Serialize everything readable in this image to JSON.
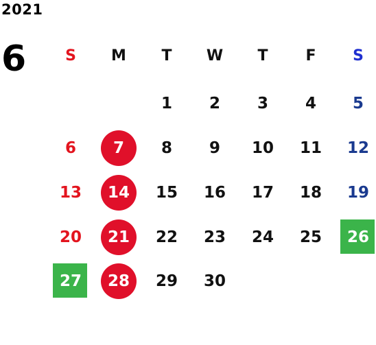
{
  "calendar": {
    "year": "2021",
    "month": "6",
    "weekdays": [
      "S",
      "M",
      "T",
      "W",
      "T",
      "F",
      "S"
    ],
    "weeks": [
      [
        "",
        "",
        "1",
        "2",
        "3",
        "4",
        "5"
      ],
      [
        "6",
        "7",
        "8",
        "9",
        "10",
        "11",
        "12"
      ],
      [
        "13",
        "14",
        "15",
        "16",
        "17",
        "18",
        "19"
      ],
      [
        "20",
        "21",
        "22",
        "23",
        "24",
        "25",
        "26"
      ],
      [
        "27",
        "28",
        "29",
        "30",
        "",
        "",
        ""
      ]
    ],
    "highlights": {
      "red_circle_days": [
        "7",
        "14",
        "21",
        "28"
      ],
      "green_box_days": [
        "26",
        "27"
      ]
    },
    "colors": {
      "sunday_text": "#e3141e",
      "saturday_text": "#1a3a8f",
      "saturday_header": "#1f2fd0",
      "red_circle": "#e0102a",
      "green_box": "#3bb44a"
    }
  }
}
